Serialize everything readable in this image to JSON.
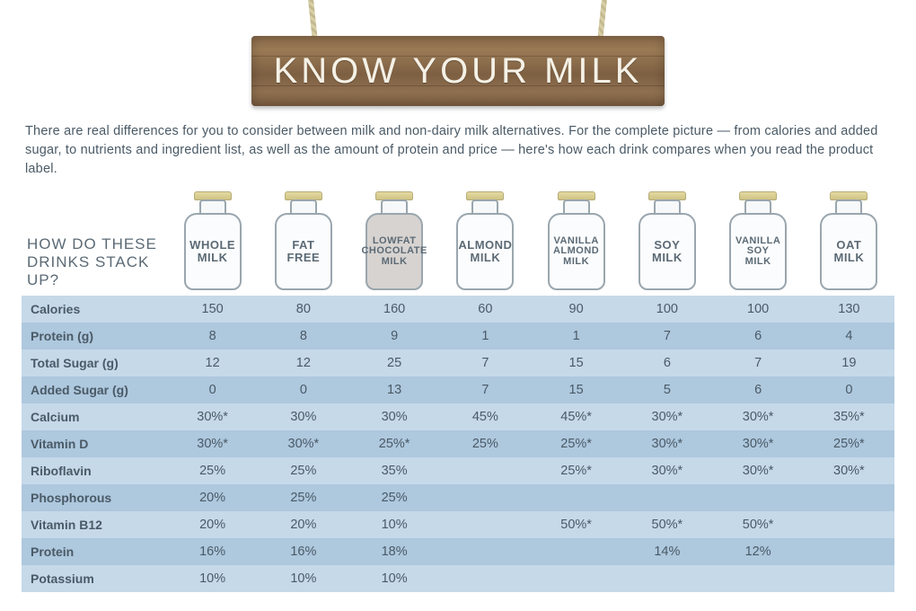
{
  "title": "KNOW YOUR MILK",
  "intro": "There are real differences for you to consider between milk and non-dairy milk alternatives. For the complete picture — from calories and added sugar, to nutrients and ingredient list, as well as the amount of protein and price — here's how each drink compares when you read the product label.",
  "heading": "HOW DO THESE\nDRINKS STACK UP?",
  "columns": [
    {
      "label": "WHOLE\nMILK",
      "small": false,
      "fill": false
    },
    {
      "label": "FAT\nFREE",
      "small": false,
      "fill": false
    },
    {
      "label": "LOWFAT\nCHOCOLATE\nMILK",
      "small": true,
      "fill": true
    },
    {
      "label": "ALMOND\nMILK",
      "small": false,
      "fill": false
    },
    {
      "label": "VANILLA\nALMOND\nMILK",
      "small": true,
      "fill": false
    },
    {
      "label": "SOY\nMILK",
      "small": false,
      "fill": false
    },
    {
      "label": "VANILLA\nSOY\nMILK",
      "small": true,
      "fill": false
    },
    {
      "label": "OAT\nMILK",
      "small": false,
      "fill": false
    }
  ],
  "rows": [
    {
      "label": "Calories",
      "cells": [
        "150",
        "80",
        "160",
        "60",
        "90",
        "100",
        "100",
        "130"
      ]
    },
    {
      "label": "Protein (g)",
      "cells": [
        "8",
        "8",
        "9",
        "1",
        "1",
        "7",
        "6",
        "4"
      ]
    },
    {
      "label": "Total Sugar (g)",
      "cells": [
        "12",
        "12",
        "25",
        "7",
        "15",
        "6",
        "7",
        "19"
      ]
    },
    {
      "label": "Added Sugar (g)",
      "cells": [
        "0",
        "0",
        "13",
        "7",
        "15",
        "5",
        "6",
        "0"
      ]
    },
    {
      "label": "Calcium",
      "cells": [
        "30%*",
        "30%",
        "30%",
        "45%",
        "45%*",
        "30%*",
        "30%*",
        "35%*"
      ]
    },
    {
      "label": "Vitamin D",
      "cells": [
        "30%*",
        "30%*",
        "25%*",
        "25%",
        "25%*",
        "30%*",
        "30%*",
        "25%*"
      ]
    },
    {
      "label": "Riboflavin",
      "cells": [
        "25%",
        "25%",
        "35%",
        "",
        "25%*",
        "30%*",
        "30%*",
        "30%*"
      ]
    },
    {
      "label": "Phosphorous",
      "cells": [
        "20%",
        "25%",
        "25%",
        "",
        "",
        "",
        "",
        ""
      ]
    },
    {
      "label": "Vitamin B12",
      "cells": [
        "20%",
        "20%",
        "10%",
        "",
        "50%*",
        "50%*",
        "50%*",
        ""
      ]
    },
    {
      "label": "Protein",
      "cells": [
        "16%",
        "16%",
        "18%",
        "",
        "",
        "14%",
        "12%",
        ""
      ]
    },
    {
      "label": "Potassium",
      "cells": [
        "10%",
        "10%",
        "10%",
        "",
        "",
        "",
        "",
        ""
      ]
    }
  ],
  "style": {
    "band_a": "#c5d9e9",
    "band_b": "#aec8de",
    "text": "#4a5a66",
    "sign_bg": "#8a6a4a",
    "sign_text": "#f5f1e6"
  }
}
